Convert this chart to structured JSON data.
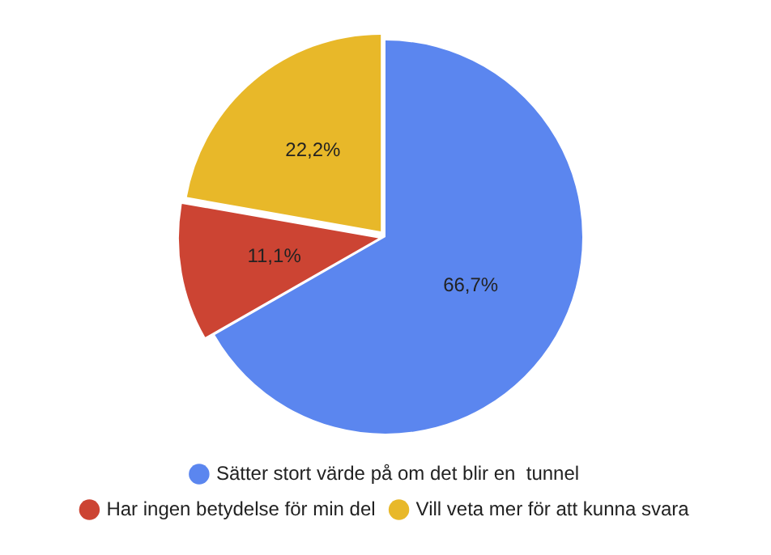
{
  "chart_data": {
    "type": "pie",
    "categories": [
      "Sätter stort värde på om det blir en  tunnel",
      "Har ingen betydelse för min del",
      "Vill veta mer för att kunna svara"
    ],
    "values": [
      66.7,
      11.1,
      22.2
    ],
    "colors": [
      "#5b86ef",
      "#cc4433",
      "#e8b829"
    ],
    "value_labels": [
      "66,7%",
      "11,1%",
      "22,2%"
    ],
    "legend": "bottom"
  }
}
